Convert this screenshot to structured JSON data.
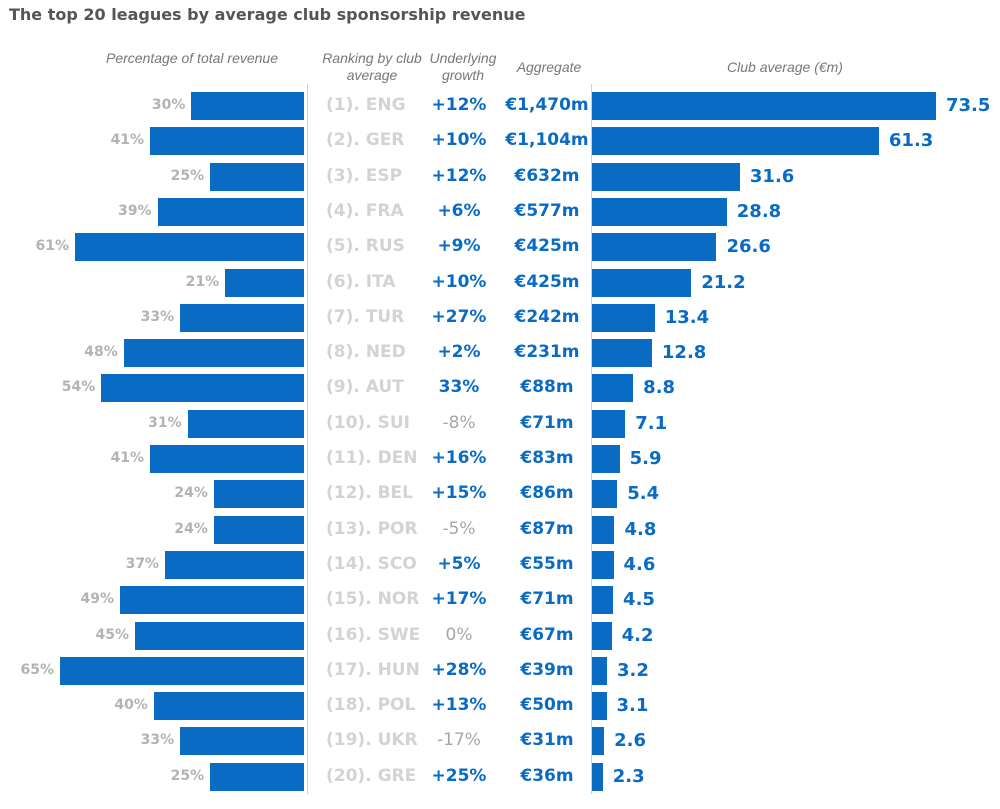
{
  "chart_data": {
    "type": "bar",
    "title": "The top 20 leagues by average club sponsorship revenue",
    "columns": {
      "pct_header": "Percentage of total revenue",
      "rank_header": "Ranking by club average",
      "growth_header": "Underlying growth",
      "aggregate_header": "Aggregate",
      "avg_header": "Club average (€m)"
    },
    "pct_xlim": [
      0,
      65
    ],
    "avg_xlim": [
      0,
      73.5
    ],
    "colors": {
      "bar": "#0a6bc4",
      "rank_text": "#d3d3d3",
      "muted": "#a6a6a6"
    },
    "rows": [
      {
        "rank": "(1). ENG",
        "pct": 30,
        "pct_label": "30%",
        "growth": "+12%",
        "aggregate": "€1,470m",
        "avg": 73.5,
        "avg_label": "73.5",
        "growth_muted": false
      },
      {
        "rank": "(2). GER",
        "pct": 41,
        "pct_label": "41%",
        "growth": "+10%",
        "aggregate": "€1,104m",
        "avg": 61.3,
        "avg_label": "61.3",
        "growth_muted": false
      },
      {
        "rank": "(3). ESP",
        "pct": 25,
        "pct_label": "25%",
        "growth": "+12%",
        "aggregate": "€632m",
        "avg": 31.6,
        "avg_label": "31.6",
        "growth_muted": false
      },
      {
        "rank": "(4). FRA",
        "pct": 39,
        "pct_label": "39%",
        "growth": "+6%",
        "aggregate": "€577m",
        "avg": 28.8,
        "avg_label": "28.8",
        "growth_muted": false
      },
      {
        "rank": "(5). RUS",
        "pct": 61,
        "pct_label": "61%",
        "growth": "+9%",
        "aggregate": "€425m",
        "avg": 26.6,
        "avg_label": "26.6",
        "growth_muted": false
      },
      {
        "rank": "(6). ITA",
        "pct": 21,
        "pct_label": "21%",
        "growth": "+10%",
        "aggregate": "€425m",
        "avg": 21.2,
        "avg_label": "21.2",
        "growth_muted": false
      },
      {
        "rank": "(7). TUR",
        "pct": 33,
        "pct_label": "33%",
        "growth": "+27%",
        "aggregate": "€242m",
        "avg": 13.4,
        "avg_label": "13.4",
        "growth_muted": false
      },
      {
        "rank": "(8). NED",
        "pct": 48,
        "pct_label": "48%",
        "growth": "+2%",
        "aggregate": "€231m",
        "avg": 12.8,
        "avg_label": "12.8",
        "growth_muted": false
      },
      {
        "rank": "(9). AUT",
        "pct": 54,
        "pct_label": "54%",
        "growth": "33%",
        "aggregate": "€88m",
        "avg": 8.8,
        "avg_label": "8.8",
        "growth_muted": false
      },
      {
        "rank": "(10). SUI",
        "pct": 31,
        "pct_label": "31%",
        "growth": "-8%",
        "aggregate": "€71m",
        "avg": 7.1,
        "avg_label": "7.1",
        "growth_muted": true
      },
      {
        "rank": "(11). DEN",
        "pct": 41,
        "pct_label": "41%",
        "growth": "+16%",
        "aggregate": "€83m",
        "avg": 5.9,
        "avg_label": "5.9",
        "growth_muted": false
      },
      {
        "rank": "(12). BEL",
        "pct": 24,
        "pct_label": "24%",
        "growth": "+15%",
        "aggregate": "€86m",
        "avg": 5.4,
        "avg_label": "5.4",
        "growth_muted": false
      },
      {
        "rank": "(13). POR",
        "pct": 24,
        "pct_label": "24%",
        "growth": "-5%",
        "aggregate": "€87m",
        "avg": 4.8,
        "avg_label": "4.8",
        "growth_muted": true
      },
      {
        "rank": "(14). SCO",
        "pct": 37,
        "pct_label": "37%",
        "growth": "+5%",
        "aggregate": "€55m",
        "avg": 4.6,
        "avg_label": "4.6",
        "growth_muted": false
      },
      {
        "rank": "(15). NOR",
        "pct": 49,
        "pct_label": "49%",
        "growth": "+17%",
        "aggregate": "€71m",
        "avg": 4.5,
        "avg_label": "4.5",
        "growth_muted": false
      },
      {
        "rank": "(16). SWE",
        "pct": 45,
        "pct_label": "45%",
        "growth": "0%",
        "aggregate": "€67m",
        "avg": 4.2,
        "avg_label": "4.2",
        "growth_muted": true
      },
      {
        "rank": "(17). HUN",
        "pct": 65,
        "pct_label": "65%",
        "growth": "+28%",
        "aggregate": "€39m",
        "avg": 3.2,
        "avg_label": "3.2",
        "growth_muted": false
      },
      {
        "rank": "(18). POL",
        "pct": 40,
        "pct_label": "40%",
        "growth": "+13%",
        "aggregate": "€50m",
        "avg": 3.1,
        "avg_label": "3.1",
        "growth_muted": false
      },
      {
        "rank": "(19). UKR",
        "pct": 33,
        "pct_label": "33%",
        "growth": "-17%",
        "aggregate": "€31m",
        "avg": 2.6,
        "avg_label": "2.6",
        "growth_muted": true
      },
      {
        "rank": "(20). GRE",
        "pct": 25,
        "pct_label": "25%",
        "growth": "+25%",
        "aggregate": "€36m",
        "avg": 2.3,
        "avg_label": "2.3",
        "growth_muted": false
      }
    ]
  }
}
